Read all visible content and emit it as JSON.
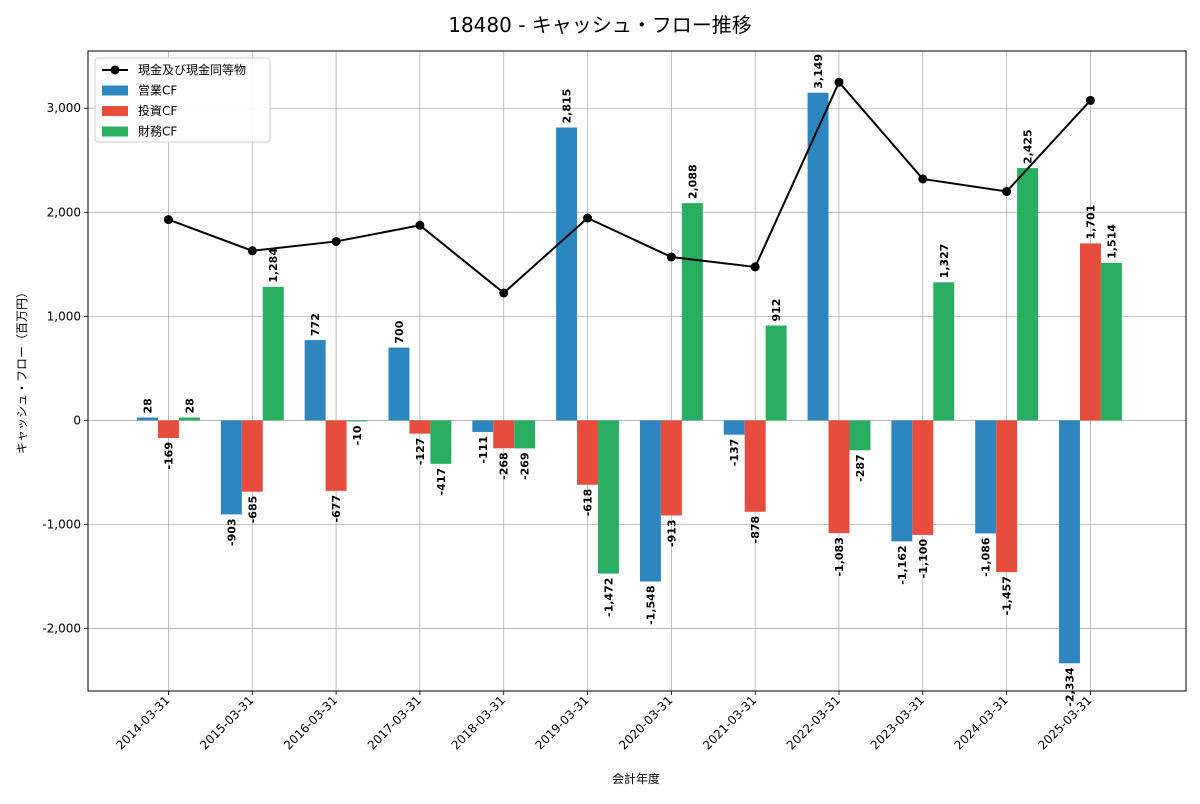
{
  "chart_data": {
    "type": "bar",
    "title": "18480 - キャッシュ・フロー推移",
    "xlabel": "会計年度",
    "ylabel": "キャッシュ・フロー（百万円）",
    "ylim": [
      -2600,
      3550
    ],
    "yticks": [
      -2000,
      -1000,
      0,
      1000,
      2000,
      3000
    ],
    "ytick_labels": [
      "-2,000",
      "-1,000",
      "0",
      "1,000",
      "2,000",
      "3,000"
    ],
    "grid": true,
    "legend_position": "top-left",
    "categories": [
      "2014-03-31",
      "2015-03-31",
      "2016-03-31",
      "2017-03-31",
      "2018-03-31",
      "2019-03-31",
      "2020-03-31",
      "2021-03-31",
      "2022-03-31",
      "2023-03-31",
      "2024-03-31",
      "2025-03-31"
    ],
    "series": [
      {
        "name": "営業CF",
        "kind": "bar",
        "color": "#2e86c1",
        "values": [
          28,
          -903,
          772,
          700,
          -111,
          2815,
          -1548,
          -137,
          3149,
          -1162,
          -1086,
          -2334
        ],
        "labels": [
          "28",
          "-903",
          "772",
          "700",
          "-111",
          "2,815",
          "-1,548",
          "-137",
          "3,149",
          "-1,162",
          "-1,086",
          "-2,334"
        ]
      },
      {
        "name": "投資CF",
        "kind": "bar",
        "color": "#e74c3c",
        "values": [
          -169,
          -685,
          -677,
          -127,
          -268,
          -618,
          -913,
          -878,
          -1083,
          -1100,
          -1457,
          1701
        ],
        "labels": [
          "-169",
          "-685",
          "-677",
          "-127",
          "-268",
          "-618",
          "-913",
          "-878",
          "-1,083",
          "-1,100",
          "-1,457",
          "1,701"
        ]
      },
      {
        "name": "財務CF",
        "kind": "bar",
        "color": "#27ae60",
        "values": [
          28,
          1284,
          -10,
          -417,
          -269,
          -1472,
          2088,
          912,
          -287,
          1327,
          2425,
          1514
        ],
        "labels": [
          "28",
          "1,284",
          "-10",
          "-417",
          "-269",
          "-1,472",
          "2,088",
          "912",
          "-287",
          "1,327",
          "2,425",
          "1,514"
        ]
      },
      {
        "name": "現金及び現金同等物",
        "kind": "line",
        "color": "#000000",
        "values": [
          1930,
          1630,
          1720,
          1875,
          1225,
          1945,
          1570,
          1475,
          3250,
          2320,
          2200,
          3075
        ]
      }
    ]
  }
}
